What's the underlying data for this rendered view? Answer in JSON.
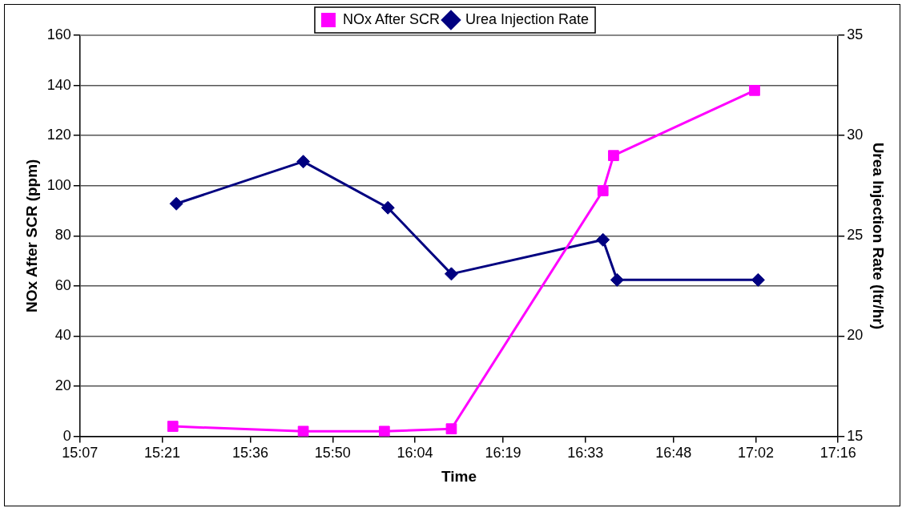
{
  "chart_data": {
    "type": "line",
    "xlabel": "Time",
    "ylabel": "NOx After SCR (ppm)",
    "y2label": "Urea Injection Rate (ltr/hr)",
    "xlim": [
      15.1167,
      17.2667
    ],
    "xticks": [
      {
        "value": 15.1167,
        "label": "15:07"
      },
      {
        "value": 15.35,
        "label": "15:21"
      },
      {
        "value": 15.6,
        "label": "15:36"
      },
      {
        "value": 15.8333,
        "label": "15:50"
      },
      {
        "value": 16.0667,
        "label": "16:04"
      },
      {
        "value": 16.3167,
        "label": "16:19"
      },
      {
        "value": 16.55,
        "label": "16:33"
      },
      {
        "value": 16.8,
        "label": "16:48"
      },
      {
        "value": 17.0333,
        "label": "17:02"
      },
      {
        "value": 17.2667,
        "label": "17:16"
      }
    ],
    "ylim": [
      0,
      160
    ],
    "yticks": [
      0,
      20,
      40,
      60,
      80,
      100,
      120,
      140,
      160
    ],
    "y2lim": [
      15,
      35
    ],
    "y2ticks": [
      15,
      20,
      25,
      30,
      35
    ],
    "grid": "y",
    "legend": "top",
    "line_style": "solid",
    "series": [
      {
        "name": "NOx After SCR",
        "color": "#ff00ff",
        "marker": "square",
        "x": [
          15.38,
          15.75,
          15.98,
          16.17,
          16.6,
          16.63,
          17.03
        ],
        "values": [
          4,
          2,
          2,
          3,
          98,
          112,
          138
        ]
      },
      {
        "name": "Urea Injection Rate",
        "color": "#000080",
        "marker": "diamond",
        "axis": "y2",
        "x": [
          15.39,
          15.75,
          15.99,
          16.17,
          16.6,
          16.64,
          17.04
        ],
        "values": [
          26.6,
          28.7,
          26.4,
          23.1,
          24.8,
          22.8,
          22.8
        ]
      }
    ]
  }
}
